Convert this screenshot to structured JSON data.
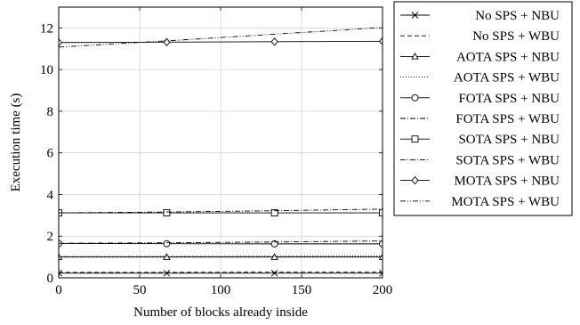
{
  "chart_data": {
    "type": "line",
    "title": "",
    "xlabel": "Number of blocks already inside",
    "ylabel": "Execution time (s)",
    "xlim": [
      0,
      200
    ],
    "ylim": [
      0,
      13
    ],
    "xticks": [
      0,
      50,
      100,
      150,
      200
    ],
    "yticks": [
      0,
      2,
      4,
      6,
      8,
      10,
      12
    ],
    "xtick_labels": [
      "0",
      "50",
      "100",
      "150",
      "200"
    ],
    "ytick_labels": [
      "0",
      "2",
      "4",
      "6",
      "8",
      "10",
      "12"
    ],
    "grid": true,
    "legend_position": "outside-right",
    "x": [
      0,
      66.7,
      133.3,
      200
    ],
    "series": [
      {
        "name": "No SPS + NBU",
        "values": [
          0.22,
          0.22,
          0.22,
          0.22
        ],
        "marker": "x",
        "dash": "solid"
      },
      {
        "name": "No SPS + WBU",
        "values": [
          0.26,
          0.26,
          0.27,
          0.27
        ],
        "marker": "none",
        "dash": "dashed"
      },
      {
        "name": "AOTA SPS + NBU",
        "values": [
          1.0,
          1.0,
          1.0,
          1.0
        ],
        "marker": "triangle",
        "dash": "solid"
      },
      {
        "name": "AOTA SPS + WBU",
        "values": [
          1.02,
          1.03,
          1.04,
          1.05
        ],
        "marker": "none",
        "dash": "dotted"
      },
      {
        "name": "FOTA SPS + NBU",
        "values": [
          1.65,
          1.64,
          1.63,
          1.63
        ],
        "marker": "circle",
        "dash": "solid"
      },
      {
        "name": "FOTA SPS + WBU",
        "values": [
          1.66,
          1.68,
          1.72,
          1.77
        ],
        "marker": "none",
        "dash": "dashdot"
      },
      {
        "name": "SOTA SPS + NBU",
        "values": [
          3.12,
          3.12,
          3.12,
          3.12
        ],
        "marker": "square",
        "dash": "solid"
      },
      {
        "name": "SOTA SPS + WBU",
        "values": [
          3.12,
          3.16,
          3.22,
          3.3
        ],
        "marker": "none",
        "dash": "dashdot"
      },
      {
        "name": "MOTA SPS + NBU",
        "values": [
          11.3,
          11.32,
          11.34,
          11.36
        ],
        "marker": "diamond",
        "dash": "solid"
      },
      {
        "name": "MOTA SPS + WBU",
        "values": [
          11.08,
          11.38,
          11.7,
          12.02
        ],
        "marker": "none",
        "dash": "dashdotdot"
      }
    ]
  }
}
